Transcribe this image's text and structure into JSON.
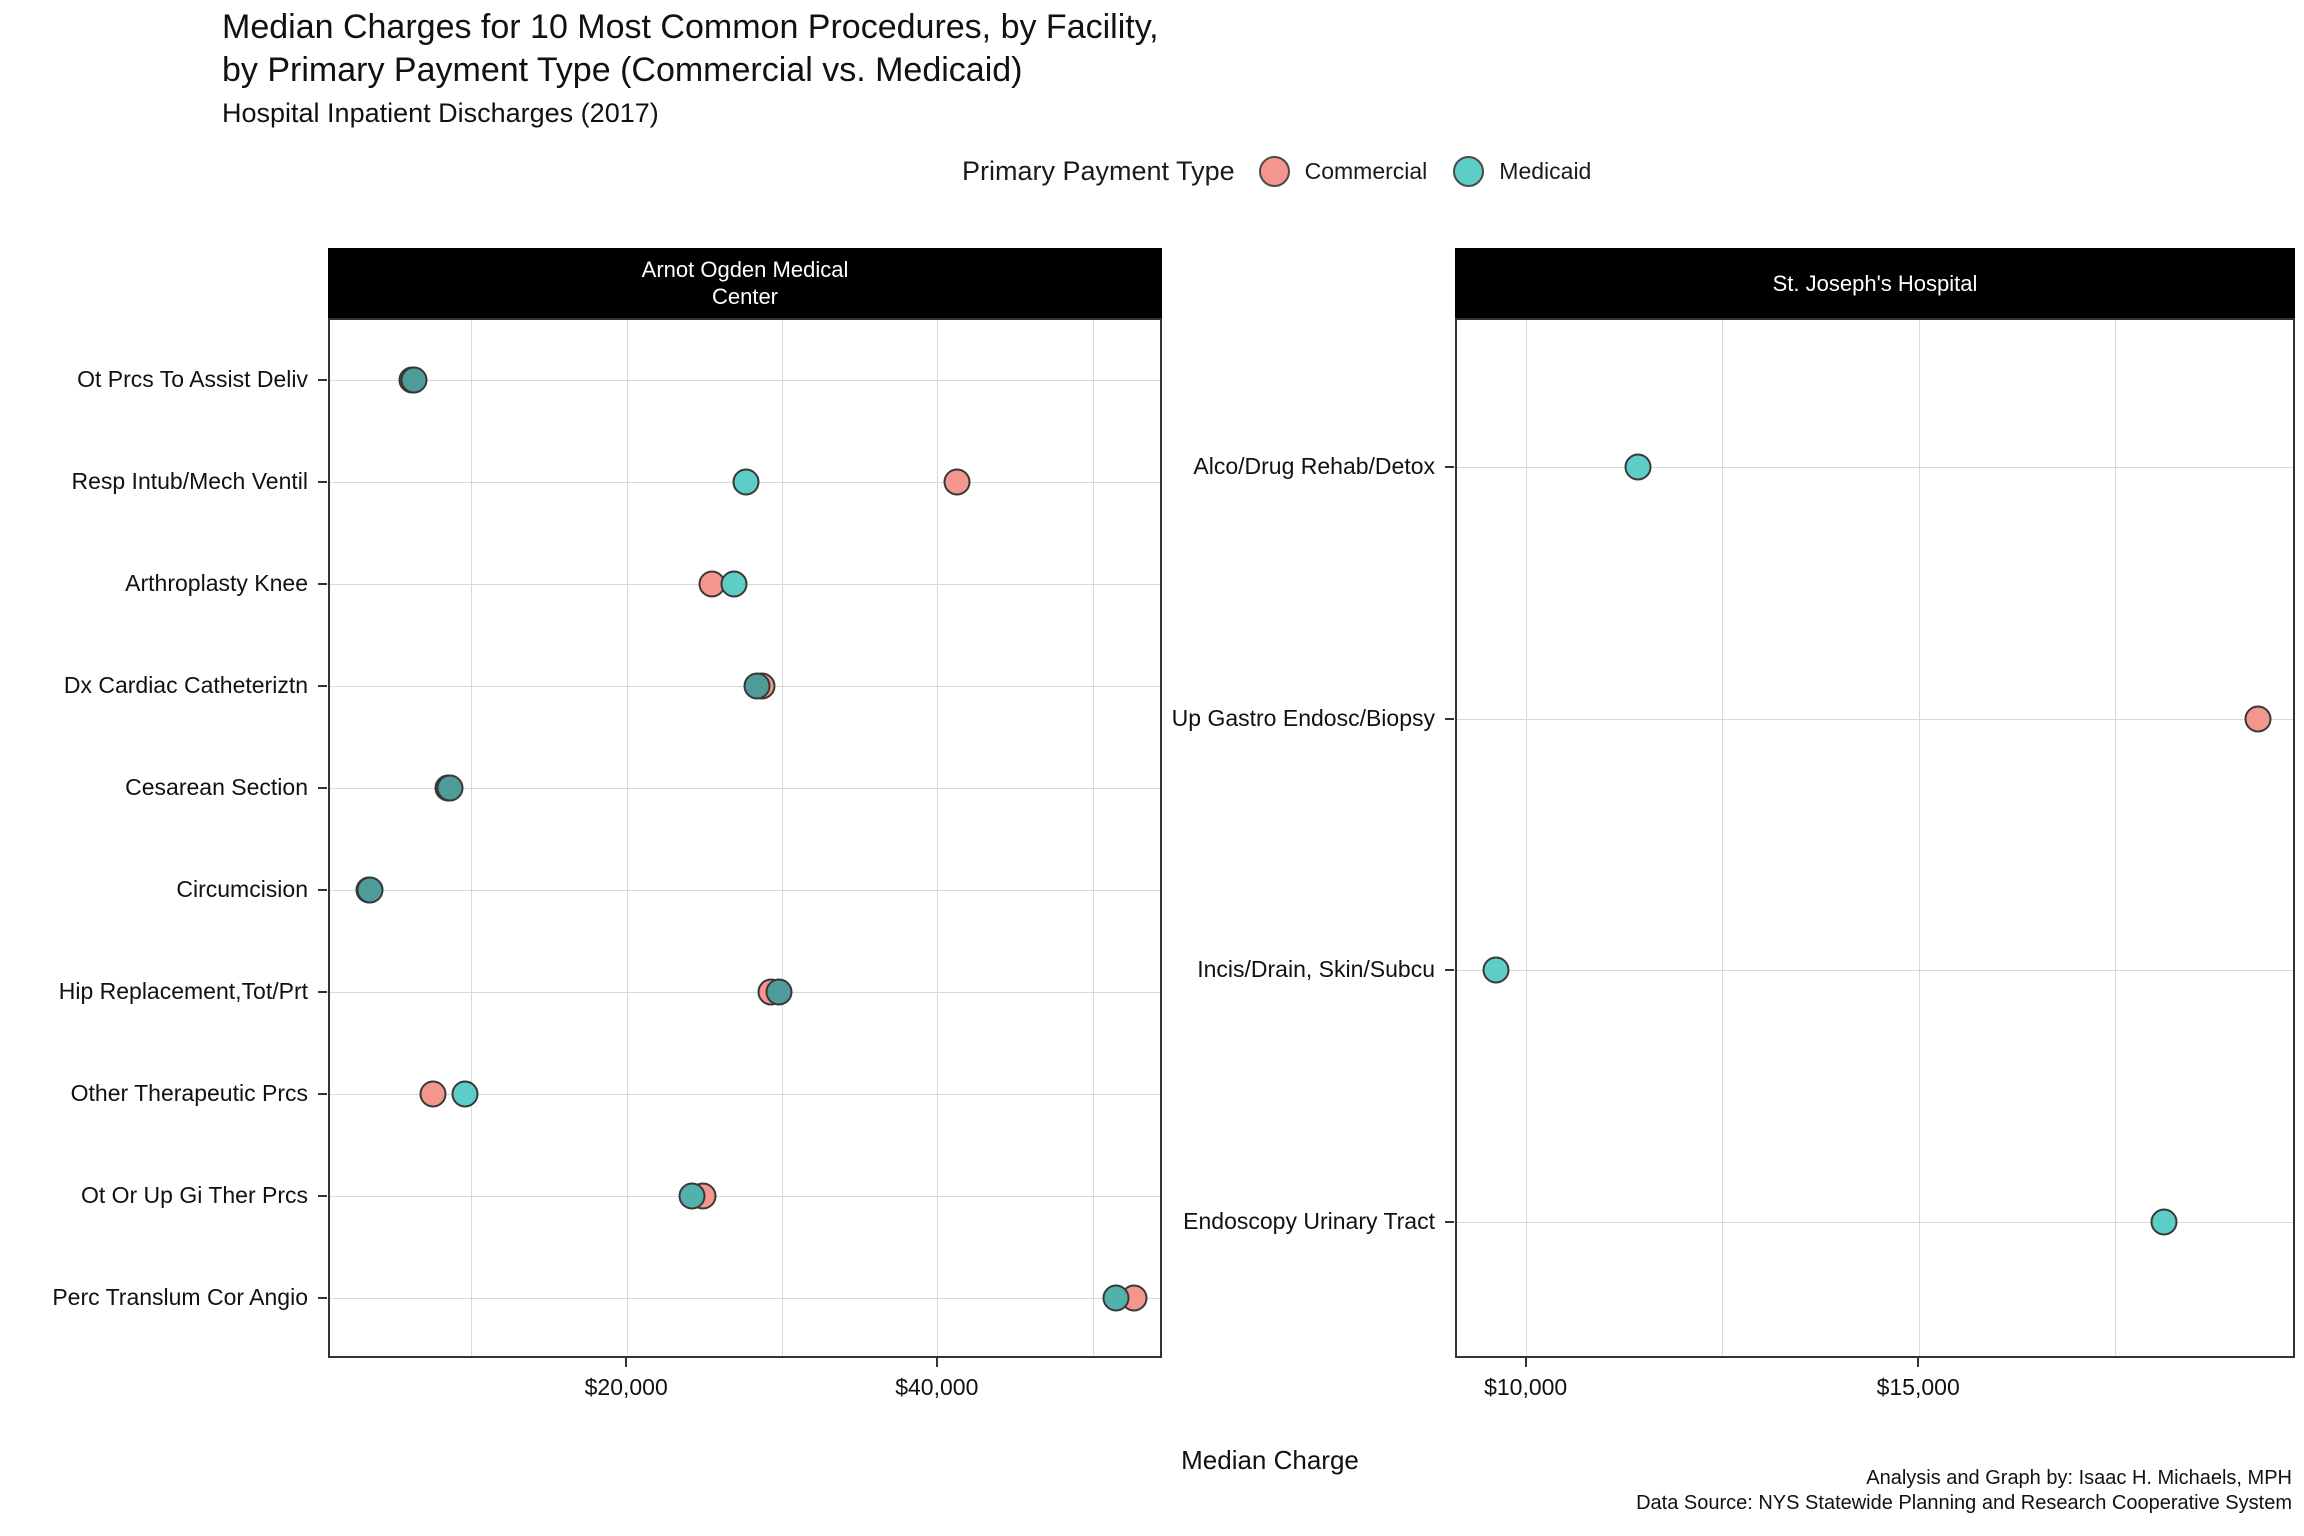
{
  "title": {
    "line1": "Median Charges for 10 Most Common Procedures, by Facility,",
    "line2": "by Primary Payment Type (Commercial vs. Medicaid)",
    "subtitle": "Hospital Inpatient Discharges (2017)"
  },
  "legend": {
    "title": "Primary Payment Type",
    "items": [
      {
        "label": "Commercial",
        "color": "#F4958E"
      },
      {
        "label": "Medicaid",
        "color": "#5DCDC8"
      }
    ]
  },
  "colors": {
    "commercial": "#F4958E",
    "medicaid": "#5DCDC8",
    "medicaid_overlap_dark": "#4E9C99",
    "medicaid_overlap_mid": "#53B1AC",
    "point_border": "#383838",
    "grid": "#d8d8d8",
    "strip_bg": "#000000",
    "strip_fg": "#ffffff",
    "panel_border": "#333333"
  },
  "xaxis_title": "Median Charge",
  "caption": {
    "line1": "Analysis and Graph by: Isaac H. Michaels, MPH",
    "line2": "Data Source: NYS Statewide Planning and Research Cooperative System"
  },
  "chart_data": [
    {
      "type": "scatter",
      "facet_label_lines": [
        "Arnot Ogden Medical",
        "Center"
      ],
      "xlim": [
        800,
        54500
      ],
      "x_gridlines": [
        10000,
        20000,
        30000,
        40000,
        50000
      ],
      "x_ticks": [
        {
          "value": 20000,
          "label": "$20,000"
        },
        {
          "value": 40000,
          "label": "$40,000"
        }
      ],
      "categories": [
        "Ot Prcs To Assist Deliv",
        "Resp Intub/Mech Ventil",
        "Arthroplasty Knee",
        "Dx Cardiac Catheteriztn",
        "Cesarean Section",
        "Circumcision",
        "Hip Replacement,Tot/Prt",
        "Other Therapeutic Prcs",
        "Ot Or Up Gi Ther Prcs",
        "Perc Translum Cor Angio"
      ],
      "series": [
        {
          "name": "Commercial",
          "values": [
            6100,
            41200,
            25400,
            28600,
            8400,
            3300,
            29200,
            7400,
            24800,
            52600
          ]
        },
        {
          "name": "Medicaid",
          "values": [
            6200,
            27600,
            26800,
            28300,
            8500,
            3400,
            29700,
            9500,
            24100,
            51400
          ]
        }
      ]
    },
    {
      "type": "scatter",
      "facet_label_lines": [
        "St. Joseph's Hospital"
      ],
      "xlim": [
        9100,
        19800
      ],
      "x_gridlines": [
        10000,
        12500,
        15000,
        17500
      ],
      "x_ticks": [
        {
          "value": 10000,
          "label": "$10,000"
        },
        {
          "value": 15000,
          "label": "$15,000"
        }
      ],
      "categories": [
        "Alco/Drug Rehab/Detox",
        "Up Gastro Endosc/Biopsy",
        "Incis/Drain, Skin/Subcu",
        "Endoscopy Urinary Tract"
      ],
      "series": [
        {
          "name": "Commercial",
          "values": [
            null,
            19300,
            null,
            null
          ]
        },
        {
          "name": "Medicaid",
          "values": [
            11400,
            null,
            9600,
            18100
          ]
        }
      ]
    }
  ]
}
